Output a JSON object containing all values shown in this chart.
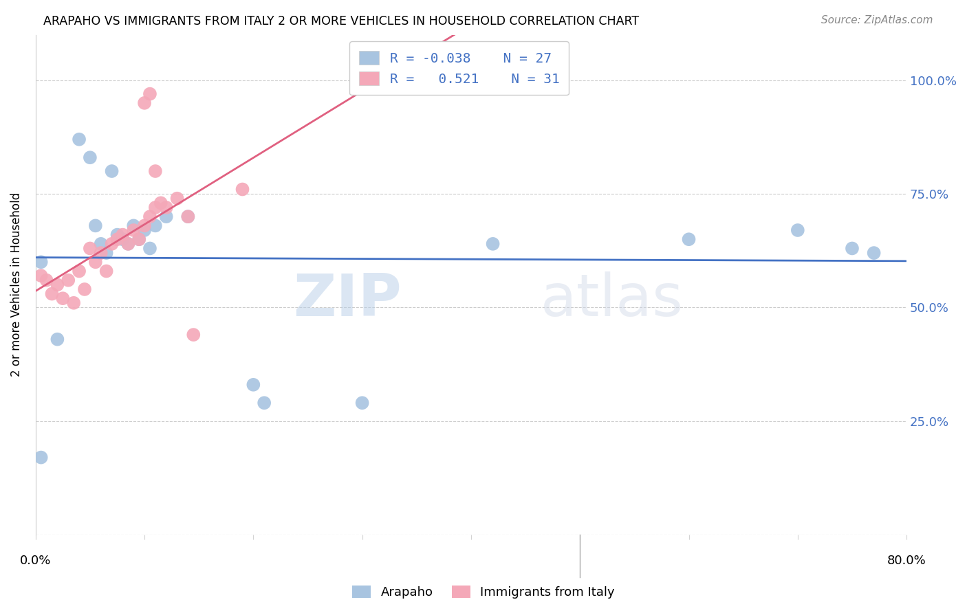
{
  "title": "ARAPAHO VS IMMIGRANTS FROM ITALY 2 OR MORE VEHICLES IN HOUSEHOLD CORRELATION CHART",
  "source": "Source: ZipAtlas.com",
  "ylabel": "2 or more Vehicles in Household",
  "ytick_labels": [
    "",
    "25.0%",
    "50.0%",
    "75.0%",
    "100.0%"
  ],
  "ytick_positions": [
    0.0,
    0.25,
    0.5,
    0.75,
    1.0
  ],
  "xlim": [
    0.0,
    0.8
  ],
  "ylim": [
    0.0,
    1.1
  ],
  "legend_r1": "R = -0.038",
  "legend_n1": "N = 27",
  "legend_r2": "R =  0.521",
  "legend_n2": "N = 31",
  "color_blue": "#a8c4e0",
  "color_pink": "#f4a8b8",
  "line_blue": "#4472c4",
  "line_pink": "#e06080",
  "watermark_zip": "ZIP",
  "watermark_atlas": "atlas",
  "arapaho_x": [
    0.005,
    0.02,
    0.04,
    0.05,
    0.055,
    0.06,
    0.065,
    0.07,
    0.075,
    0.08,
    0.085,
    0.09,
    0.095,
    0.1,
    0.105,
    0.11,
    0.12,
    0.14,
    0.2,
    0.21,
    0.3,
    0.42,
    0.6,
    0.7,
    0.75,
    0.77,
    0.005
  ],
  "arapaho_y": [
    0.6,
    0.43,
    0.87,
    0.83,
    0.68,
    0.64,
    0.62,
    0.8,
    0.66,
    0.65,
    0.64,
    0.68,
    0.65,
    0.67,
    0.63,
    0.68,
    0.7,
    0.7,
    0.33,
    0.29,
    0.29,
    0.64,
    0.65,
    0.67,
    0.63,
    0.62,
    0.17
  ],
  "italy_x": [
    0.005,
    0.01,
    0.015,
    0.02,
    0.025,
    0.03,
    0.035,
    0.04,
    0.045,
    0.05,
    0.055,
    0.06,
    0.065,
    0.07,
    0.075,
    0.08,
    0.085,
    0.09,
    0.095,
    0.1,
    0.105,
    0.11,
    0.115,
    0.12,
    0.13,
    0.14,
    0.1,
    0.105,
    0.11,
    0.19,
    0.145
  ],
  "italy_y": [
    0.57,
    0.56,
    0.53,
    0.55,
    0.52,
    0.56,
    0.51,
    0.58,
    0.54,
    0.63,
    0.6,
    0.62,
    0.58,
    0.64,
    0.65,
    0.66,
    0.64,
    0.67,
    0.65,
    0.68,
    0.7,
    0.72,
    0.73,
    0.72,
    0.74,
    0.7,
    0.95,
    0.97,
    0.8,
    0.76,
    0.44
  ]
}
